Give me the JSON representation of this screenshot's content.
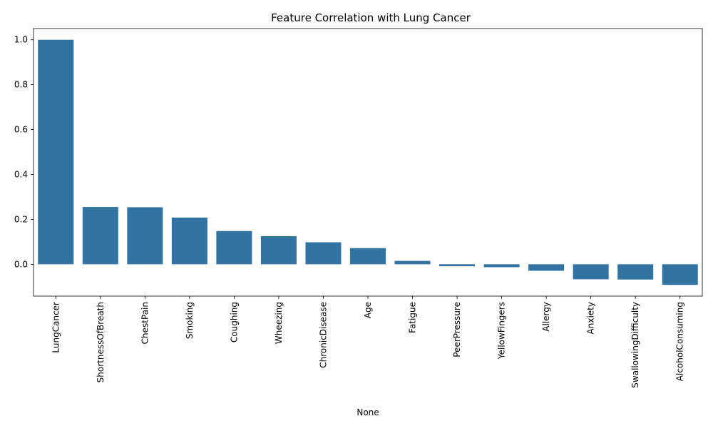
{
  "chart_data": {
    "type": "bar",
    "title": "Feature Correlation with Lung Cancer",
    "xlabel": "None",
    "ylabel": "",
    "categories": [
      "LungCancer",
      "ShortnessOfBreath",
      "ChestPain",
      "Smoking",
      "Coughing",
      "Wheezing",
      "ChronicDisease",
      "Age",
      "Fatigue",
      "PeerPressure",
      "YellowFingers",
      "Allergy",
      "Anxiety",
      "SwallowingDifficulty",
      "AlcoholConsuming"
    ],
    "values": [
      1.0,
      0.255,
      0.254,
      0.208,
      0.148,
      0.125,
      0.098,
      0.072,
      0.015,
      -0.009,
      -0.013,
      -0.029,
      -0.067,
      -0.068,
      -0.092
    ],
    "ylim": [
      -0.142,
      1.05
    ],
    "yticks": [
      0.0,
      0.2,
      0.4,
      0.6,
      0.8,
      1.0
    ],
    "ytick_labels": [
      "0.0",
      "0.2",
      "0.4",
      "0.6",
      "0.8",
      "1.0"
    ],
    "grid": false,
    "bar_color": "#3274a1"
  }
}
